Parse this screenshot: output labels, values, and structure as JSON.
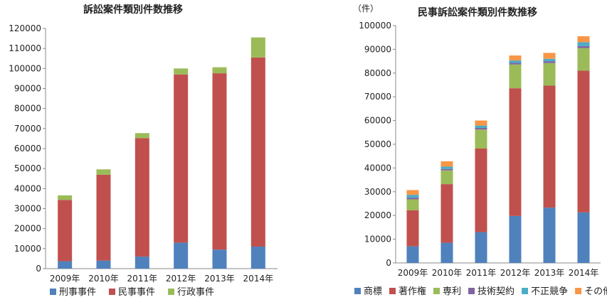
{
  "chart_data": [
    {
      "type": "bar",
      "stacked": true,
      "title": "訴訟案件類別件数推移",
      "ylabel": "",
      "xlabel": "",
      "ylim": [
        0,
        120000
      ],
      "ytick_step": 10000,
      "grid": false,
      "legend_position": "bottom",
      "categories": [
        "2009年",
        "2010年",
        "2011年",
        "2012年",
        "2013年",
        "2014年"
      ],
      "series": [
        {
          "name": "刑事事件",
          "color": "#4f81bd",
          "values": [
            3700,
            4000,
            6000,
            13000,
            9500,
            11000
          ]
        },
        {
          "name": "民事事件",
          "color": "#c0504d",
          "values": [
            30600,
            42900,
            59200,
            84000,
            88100,
            94500
          ]
        },
        {
          "name": "行政事件",
          "color": "#9bbb59",
          "values": [
            2300,
            2700,
            2500,
            3000,
            3000,
            10000
          ]
        }
      ]
    },
    {
      "type": "bar",
      "stacked": true,
      "title": "民事訴訟案件類別件数推移",
      "ylabel": "（件）",
      "xlabel": "",
      "ylim": [
        0,
        100000
      ],
      "ytick_step": 10000,
      "grid": false,
      "legend_position": "bottom",
      "categories": [
        "2009年",
        "2010年",
        "2011年",
        "2012年",
        "2013年",
        "2014年"
      ],
      "series": [
        {
          "name": "商標",
          "color": "#4f81bd",
          "values": [
            7000,
            8500,
            13000,
            19800,
            23300,
            21300
          ]
        },
        {
          "name": "著作権",
          "color": "#c0504d",
          "values": [
            15200,
            24700,
            35200,
            53800,
            51400,
            59700
          ]
        },
        {
          "name": "専利",
          "color": "#9bbb59",
          "values": [
            4600,
            5800,
            8000,
            10000,
            9500,
            9500
          ]
        },
        {
          "name": "技術契約",
          "color": "#8064a2",
          "values": [
            700,
            600,
            700,
            700,
            800,
            900
          ]
        },
        {
          "name": "不正競争",
          "color": "#4bacc6",
          "values": [
            1200,
            1000,
            1000,
            1000,
            1000,
            1600
          ]
        },
        {
          "name": "その他",
          "color": "#f79646",
          "values": [
            2000,
            2200,
            2100,
            2100,
            2500,
            2500
          ]
        }
      ]
    }
  ]
}
